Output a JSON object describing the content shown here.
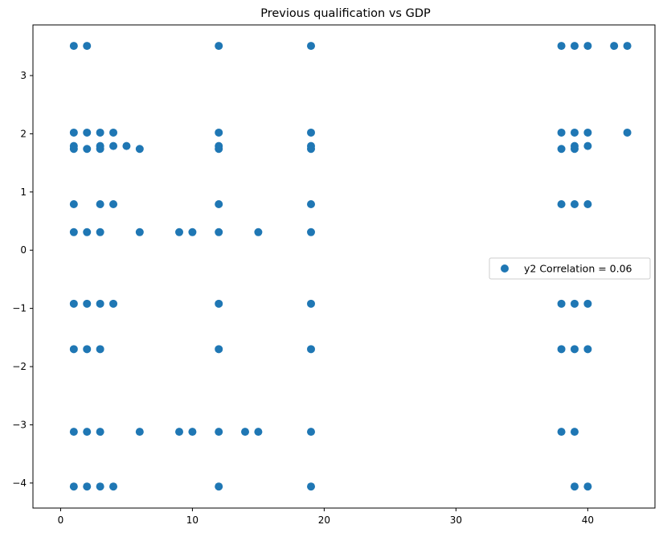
{
  "chart_data": {
    "type": "scatter",
    "title": "Previous qualification vs GDP",
    "xlabel": "",
    "ylabel": "",
    "xlim": [
      -2.1,
      45.1
    ],
    "ylim": [
      -4.43,
      3.87
    ],
    "x_ticks": [
      0,
      10,
      20,
      30,
      40
    ],
    "y_ticks": [
      -4,
      -3,
      -2,
      -1,
      0,
      1,
      2,
      3
    ],
    "grid": false,
    "legend_position": "center-right",
    "series": [
      {
        "name": "y2 Correlation = 0.06",
        "color": "#1f77b4",
        "points": [
          [
            1,
            3.51
          ],
          [
            2,
            3.51
          ],
          [
            12,
            3.51
          ],
          [
            19,
            3.51
          ],
          [
            38,
            3.51
          ],
          [
            39,
            3.51
          ],
          [
            40,
            3.51
          ],
          [
            42,
            3.51
          ],
          [
            43,
            3.51
          ],
          [
            1,
            2.02
          ],
          [
            2,
            2.02
          ],
          [
            3,
            2.02
          ],
          [
            4,
            2.02
          ],
          [
            12,
            2.02
          ],
          [
            19,
            2.02
          ],
          [
            38,
            2.02
          ],
          [
            39,
            2.02
          ],
          [
            40,
            2.02
          ],
          [
            43,
            2.02
          ],
          [
            1,
            1.79
          ],
          [
            3,
            1.79
          ],
          [
            4,
            1.79
          ],
          [
            5,
            1.79
          ],
          [
            12,
            1.79
          ],
          [
            19,
            1.79
          ],
          [
            39,
            1.79
          ],
          [
            40,
            1.79
          ],
          [
            1,
            1.74
          ],
          [
            2,
            1.74
          ],
          [
            3,
            1.74
          ],
          [
            6,
            1.74
          ],
          [
            12,
            1.74
          ],
          [
            19,
            1.74
          ],
          [
            38,
            1.74
          ],
          [
            39,
            1.74
          ],
          [
            1,
            0.79
          ],
          [
            3,
            0.79
          ],
          [
            4,
            0.79
          ],
          [
            12,
            0.79
          ],
          [
            19,
            0.79
          ],
          [
            38,
            0.79
          ],
          [
            39,
            0.79
          ],
          [
            40,
            0.79
          ],
          [
            1,
            0.31
          ],
          [
            2,
            0.31
          ],
          [
            3,
            0.31
          ],
          [
            6,
            0.31
          ],
          [
            9,
            0.31
          ],
          [
            10,
            0.31
          ],
          [
            12,
            0.31
          ],
          [
            15,
            0.31
          ],
          [
            19,
            0.31
          ],
          [
            1,
            -0.92
          ],
          [
            2,
            -0.92
          ],
          [
            3,
            -0.92
          ],
          [
            4,
            -0.92
          ],
          [
            12,
            -0.92
          ],
          [
            19,
            -0.92
          ],
          [
            38,
            -0.92
          ],
          [
            39,
            -0.92
          ],
          [
            40,
            -0.92
          ],
          [
            1,
            -1.7
          ],
          [
            2,
            -1.7
          ],
          [
            3,
            -1.7
          ],
          [
            12,
            -1.7
          ],
          [
            19,
            -1.7
          ],
          [
            38,
            -1.7
          ],
          [
            39,
            -1.7
          ],
          [
            40,
            -1.7
          ],
          [
            1,
            -3.12
          ],
          [
            2,
            -3.12
          ],
          [
            3,
            -3.12
          ],
          [
            6,
            -3.12
          ],
          [
            9,
            -3.12
          ],
          [
            10,
            -3.12
          ],
          [
            12,
            -3.12
          ],
          [
            14,
            -3.12
          ],
          [
            15,
            -3.12
          ],
          [
            19,
            -3.12
          ],
          [
            38,
            -3.12
          ],
          [
            39,
            -3.12
          ],
          [
            1,
            -4.06
          ],
          [
            2,
            -4.06
          ],
          [
            3,
            -4.06
          ],
          [
            4,
            -4.06
          ],
          [
            12,
            -4.06
          ],
          [
            19,
            -4.06
          ],
          [
            39,
            -4.06
          ],
          [
            40,
            -4.06
          ]
        ]
      }
    ]
  }
}
